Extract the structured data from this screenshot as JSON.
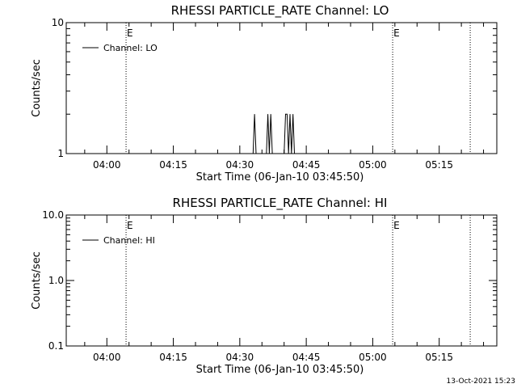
{
  "chart_data": [
    {
      "type": "line",
      "title": "RHESSI PARTICLE_RATE Channel: LO",
      "xlabel": "Start Time (06-Jan-10 03:45:50)",
      "ylabel": "Counts/sec",
      "y_scale": "log",
      "ylim": [
        1,
        10
      ],
      "y_ticks": [
        {
          "value": 1,
          "label": "1"
        },
        {
          "value": 10,
          "label": "10"
        }
      ],
      "xlim": [
        "03:50:50",
        "05:28:00"
      ],
      "x_ticks": [
        "04:00",
        "04:15",
        "04:30",
        "04:45",
        "05:00",
        "05:15"
      ],
      "legend": {
        "placement": "top-left",
        "entries": [
          "Channel: LO"
        ]
      },
      "vertical_lines": [
        {
          "x": "04:04:20",
          "label": "E"
        },
        {
          "x": "05:04:30",
          "label": "E"
        },
        {
          "x": "05:22:00",
          "label": ""
        }
      ],
      "series": [
        {
          "name": "Channel: LO",
          "x": [
            "04:33:00",
            "04:33:20",
            "04:33:40",
            "04:36:00",
            "04:36:20",
            "04:36:40",
            "04:37:00",
            "04:37:20",
            "04:37:40",
            "04:40:00",
            "04:40:20",
            "04:40:40",
            "04:41:00",
            "04:41:20",
            "04:41:40",
            "04:42:00",
            "04:42:20"
          ],
          "y": [
            1,
            2,
            1,
            1,
            2,
            1,
            2,
            1,
            1,
            1,
            2,
            2,
            1,
            2,
            1,
            2,
            1
          ]
        }
      ]
    },
    {
      "type": "line",
      "title": "RHESSI PARTICLE_RATE Channel: HI",
      "xlabel": "Start Time (06-Jan-10 03:45:50)",
      "ylabel": "Counts/sec",
      "y_scale": "log",
      "ylim": [
        0.1,
        10
      ],
      "y_ticks": [
        {
          "value": 0.1,
          "label": "0.1"
        },
        {
          "value": 1,
          "label": "1.0"
        },
        {
          "value": 10,
          "label": "10.0"
        }
      ],
      "xlim": [
        "03:50:50",
        "05:28:00"
      ],
      "x_ticks": [
        "04:00",
        "04:15",
        "04:30",
        "04:45",
        "05:00",
        "05:15"
      ],
      "legend": {
        "placement": "top-left",
        "entries": [
          "Channel: HI"
        ]
      },
      "vertical_lines": [
        {
          "x": "04:04:20",
          "label": "E"
        },
        {
          "x": "05:04:30",
          "label": "E"
        },
        {
          "x": "05:22:00",
          "label": ""
        }
      ],
      "series": [
        {
          "name": "Channel: HI",
          "x": [],
          "y": []
        }
      ]
    }
  ],
  "timestamp": "13-Oct-2021 15:23"
}
